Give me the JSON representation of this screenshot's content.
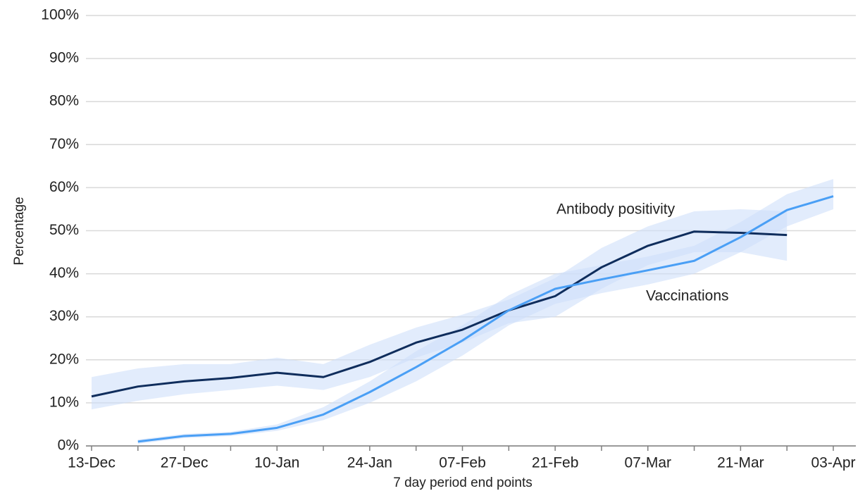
{
  "chart_data": {
    "type": "line",
    "x_label": "7 day period end points",
    "y_label": "Percentage",
    "categories": [
      "13-Dec",
      null,
      "27-Dec",
      null,
      "10-Jan",
      null,
      "24-Jan",
      null,
      "07-Feb",
      null,
      "21-Feb",
      null,
      "07-Mar",
      null,
      "21-Mar",
      null,
      "03-Apr"
    ],
    "series": [
      {
        "name": "Antibody positivity",
        "color": "#0f2d5c",
        "values": [
          11.5,
          13.8,
          15,
          15.8,
          17,
          16,
          19.5,
          24,
          27,
          31.5,
          34.8,
          41.5,
          46.5,
          49.8,
          49.5,
          49,
          null
        ],
        "lower": [
          8.5,
          10.5,
          12,
          13,
          14,
          13,
          16,
          20.5,
          24,
          28.5,
          30,
          36.5,
          42,
          45,
          45,
          43,
          null
        ],
        "upper": [
          16,
          18,
          19,
          19,
          20.5,
          19,
          23.5,
          27.5,
          30.5,
          34,
          39,
          46,
          51,
          54.5,
          55,
          54.5,
          null
        ]
      },
      {
        "name": "Vaccinations",
        "color": "#4a9ff5",
        "values": [
          null,
          1,
          2.3,
          2.8,
          4.2,
          7.3,
          12.5,
          18.3,
          24.5,
          31.5,
          36.5,
          38.7,
          40.8,
          43,
          48.5,
          54.8,
          58
        ],
        "lower": [
          null,
          0.5,
          1.8,
          2.3,
          3.5,
          6,
          10,
          15,
          21,
          28,
          33,
          35.5,
          37.5,
          40,
          45,
          51,
          55
        ],
        "upper": [
          null,
          1.5,
          2.8,
          3.3,
          5,
          9,
          15,
          22,
          28,
          35,
          40,
          42,
          44,
          46.5,
          52,
          58.5,
          62
        ]
      }
    ],
    "band_color": "#cfe0fa",
    "ylim": [
      0,
      100
    ],
    "yticks": [
      {
        "value": 0,
        "label": "0%"
      },
      {
        "value": 10,
        "label": "10%"
      },
      {
        "value": 20,
        "label": "20%"
      },
      {
        "value": 30,
        "label": "30%"
      },
      {
        "value": 40,
        "label": "40%"
      },
      {
        "value": 50,
        "label": "50%"
      },
      {
        "value": 60,
        "label": "60%"
      },
      {
        "value": 70,
        "label": "70%"
      },
      {
        "value": 80,
        "label": "80%"
      },
      {
        "value": 90,
        "label": "90%"
      },
      {
        "value": 100,
        "label": "100%"
      }
    ],
    "grid": true
  }
}
